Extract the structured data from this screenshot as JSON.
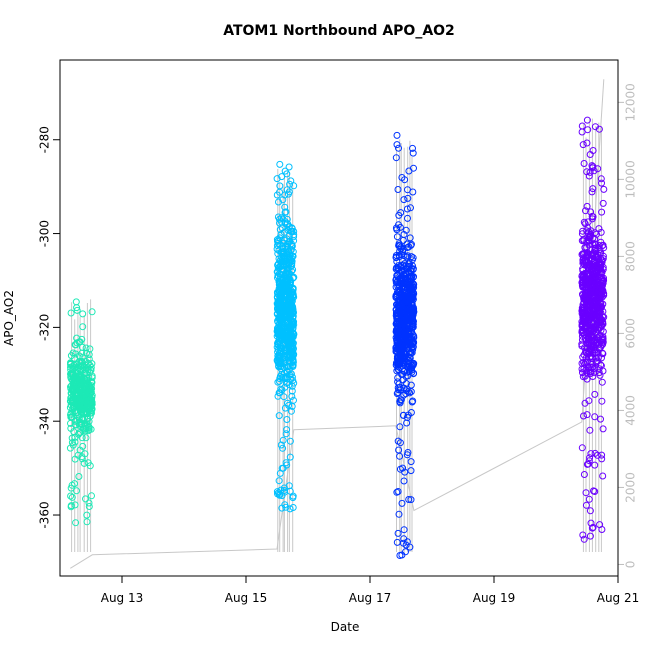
{
  "chart_data": {
    "type": "scatter",
    "title": "ATOM1 Northbound APO_AO2",
    "xlabel": "Date",
    "ylabel": "APO_AO2",
    "x_ticks": [
      {
        "date": "2021-08-13",
        "label": "Aug 13"
      },
      {
        "date": "2021-08-15",
        "label": "Aug 15"
      },
      {
        "date": "2021-08-17",
        "label": "Aug 17"
      },
      {
        "date": "2021-08-19",
        "label": "Aug 19"
      },
      {
        "date": "2021-08-21",
        "label": "Aug 21"
      }
    ],
    "xlim": [
      "2021-08-12 00:00",
      "2021-08-21 00:00"
    ],
    "ylim": [
      -373,
      -263
    ],
    "y_ticks": [
      -280,
      -300,
      -320,
      -340,
      -360
    ],
    "y2_ticks": [
      0,
      2000,
      4000,
      6000,
      8000,
      10000,
      12000
    ],
    "y2lim": [
      -300,
      13100
    ],
    "grid": false,
    "series": [
      {
        "color": "#1de9b6",
        "start": "2021-08-12 04:00",
        "end": "2021-08-12 12:30",
        "y_core": [
          -345,
          -323
        ],
        "y_range": [
          -362,
          -313
        ],
        "points": 420
      },
      {
        "color": "#00c0ff",
        "start": "2021-08-15 12:00",
        "end": "2021-08-15 18:30",
        "y_core": [
          -340,
          -293
        ],
        "y_range": [
          -359,
          -285
        ],
        "points": 700
      },
      {
        "color": "#0033ff",
        "start": "2021-08-17 10:00",
        "end": "2021-08-17 17:00",
        "y_core": [
          -338,
          -298
        ],
        "y_range": [
          -370,
          -279
        ],
        "points": 700
      },
      {
        "color": "#6a00ff",
        "start": "2021-08-20 10:00",
        "end": "2021-08-20 18:30",
        "y_core": [
          -337,
          -291
        ],
        "y_range": [
          -366,
          -275
        ],
        "points": 700
      }
    ],
    "secondary_line": {
      "color": "#c8c8c8",
      "points": [
        {
          "t": "2021-08-12 04:00",
          "v": -100
        },
        {
          "t": "2021-08-12 12:30",
          "v": 250
        },
        {
          "t": "2021-08-15 12:00",
          "v": 400
        },
        {
          "t": "2021-08-15 18:30",
          "v": 3500
        },
        {
          "t": "2021-08-17 10:00",
          "v": 3600
        },
        {
          "t": "2021-08-17 17:00",
          "v": 1400
        },
        {
          "t": "2021-08-20 10:00",
          "v": 3700
        },
        {
          "t": "2021-08-20 18:30",
          "v": 12600
        }
      ]
    }
  }
}
